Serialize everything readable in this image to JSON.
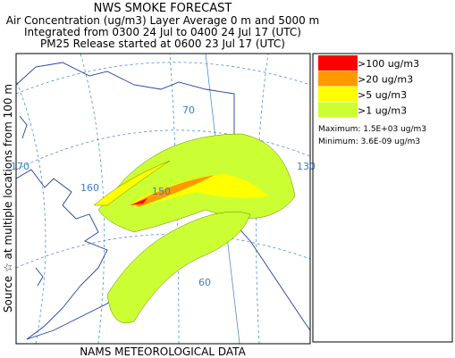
{
  "header": {
    "title": "NWS SMOKE FORECAST",
    "lines": [
      "Air Concentration (ug/m3) Layer Average    0 m and  5000 m",
      "Integrated from 0300 24 Jul to 0400 24 Jul 17 (UTC)",
      "PM25 Release started at 0600 23 Jul 17 (UTC)"
    ]
  },
  "legend": {
    "entries": [
      {
        "label": ">100 ug/m3",
        "color": "#ff0000"
      },
      {
        "label": ">20 ug/m3",
        "color": "#ff9900"
      },
      {
        "label": ">5 ug/m3",
        "color": "#ffff00"
      },
      {
        "label": ">1 ug/m3",
        "color": "#ccff33"
      }
    ],
    "maximum": "Maximum: 1.5E+03 ug/m3",
    "minimum": "Minimum: 3.6E-09 ug/m3"
  },
  "map": {
    "grid_labels": [
      "170",
      "160",
      "70",
      "130",
      "150",
      "60"
    ]
  },
  "side_label": "Source ☆ at multiple locations from  100 m",
  "footer": "NAMS METEOROLOGICAL DATA"
}
